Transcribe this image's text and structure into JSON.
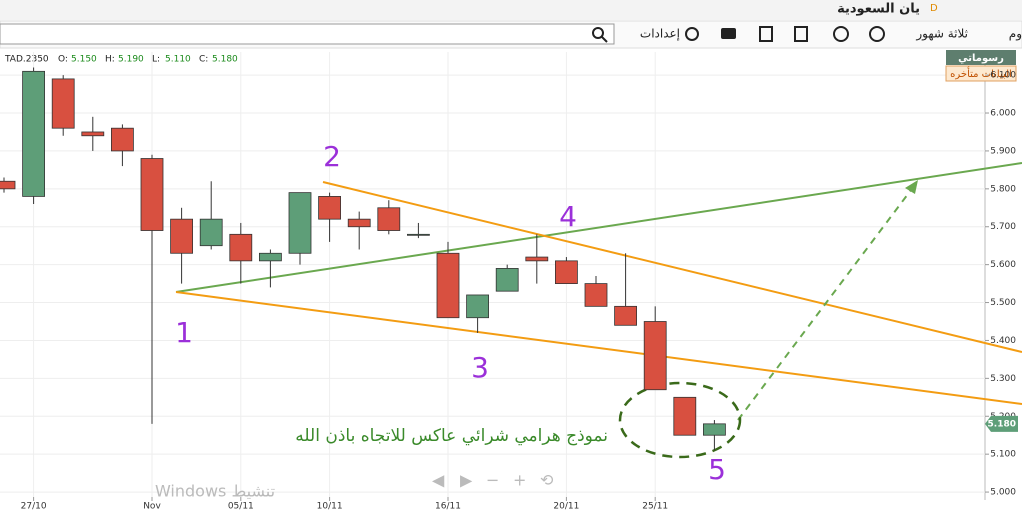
{
  "header": {
    "title": "يان السعودية",
    "title_badge": "D",
    "toolbar": {
      "period_cut": "وم",
      "range": "ثلاثة شهور",
      "settings": "إعدادات"
    }
  },
  "chart_data": {
    "type": "candlestick",
    "symbol": "TAD.2350",
    "ohlc_header": [
      {
        "label": "O:",
        "value": "5.150"
      },
      {
        "label": "H:",
        "value": "5.190"
      },
      {
        "label": "L:",
        "value": "5.110"
      },
      {
        "label": "C:",
        "value": "5.180"
      }
    ],
    "badge": "رسوماتي",
    "delayed_note": "البيانات متأخره",
    "last_price_label": "5.180",
    "categories": [
      null,
      "27/10",
      null,
      null,
      null,
      "Nov",
      null,
      null,
      "05/11",
      null,
      null,
      "10/11",
      null,
      null,
      null,
      "16/11",
      null,
      null,
      null,
      "20/11",
      null,
      null,
      "25/11",
      null,
      null
    ],
    "open": [
      5.82,
      5.78,
      6.09,
      5.95,
      5.96,
      5.88,
      5.72,
      5.65,
      5.68,
      5.61,
      5.63,
      5.78,
      5.72,
      5.75,
      5.68,
      5.63,
      5.46,
      5.53,
      5.62,
      5.61,
      5.55,
      5.49,
      5.45,
      5.25,
      5.15
    ],
    "high": [
      5.83,
      6.12,
      6.1,
      5.99,
      5.97,
      5.89,
      5.75,
      5.82,
      5.71,
      5.64,
      5.79,
      5.79,
      5.74,
      5.77,
      5.71,
      5.66,
      5.52,
      5.6,
      5.68,
      5.62,
      5.57,
      5.63,
      5.49,
      5.25,
      5.19
    ],
    "low": [
      5.79,
      5.76,
      5.94,
      5.9,
      5.86,
      5.18,
      5.55,
      5.64,
      5.55,
      5.54,
      5.6,
      5.66,
      5.64,
      5.68,
      5.67,
      5.46,
      5.42,
      5.53,
      5.55,
      5.55,
      5.49,
      5.44,
      5.27,
      5.15,
      5.11
    ],
    "close": [
      5.8,
      6.11,
      5.96,
      5.94,
      5.9,
      5.69,
      5.63,
      5.72,
      5.61,
      5.63,
      5.79,
      5.72,
      5.7,
      5.69,
      5.68,
      5.46,
      5.52,
      5.59,
      5.61,
      5.55,
      5.49,
      5.44,
      5.27,
      5.15,
      5.18
    ],
    "up_color": "#5e9e78",
    "down_color": "#d85040",
    "ylim": [
      4.987,
      6.161
    ],
    "yticks": [
      {
        "value": 5.0,
        "label": "5.000"
      },
      {
        "value": 5.1,
        "label": "5.100"
      },
      {
        "value": 5.2,
        "label": "5.200"
      },
      {
        "value": 5.3,
        "label": "5.300"
      },
      {
        "value": 5.4,
        "label": "5.400"
      },
      {
        "value": 5.5,
        "label": "5.500"
      },
      {
        "value": 5.6,
        "label": "5.600"
      },
      {
        "value": 5.7,
        "label": "5.700"
      },
      {
        "value": 5.8,
        "label": "5.800"
      },
      {
        "value": 5.9,
        "label": "5.900"
      },
      {
        "value": 6.0,
        "label": "6.000"
      },
      {
        "value": 6.1,
        "label": "6.100"
      }
    ],
    "grid": true,
    "annotations": [
      "1",
      "2",
      "3",
      "4",
      "5"
    ],
    "pattern_note": "نموذج هرامي شرائي عاكس للاتجاه باذن الله"
  },
  "overlay": {
    "activation": "Windows تنشيط"
  }
}
